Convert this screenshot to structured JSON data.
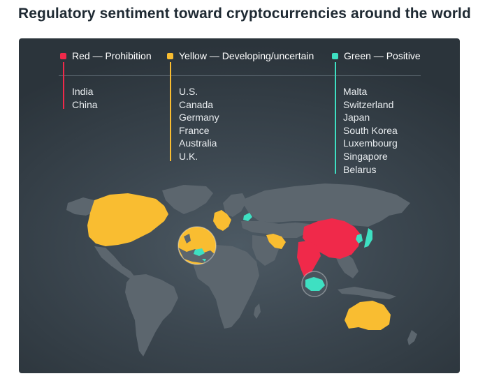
{
  "title": "Regulatory sentiment toward cryptocurrencies around the world",
  "legend": [
    {
      "key": "red",
      "label": "Red — Prohibition",
      "color": "#f0294a",
      "countries": [
        "India",
        "China"
      ]
    },
    {
      "key": "yellow",
      "label": "Yellow — Developing/uncertain",
      "color": "#f9bd31",
      "countries": [
        "U.S.",
        "Canada",
        "Germany",
        "France",
        "Australia",
        "U.K."
      ]
    },
    {
      "key": "green",
      "label": "Green — Positive",
      "color": "#3ee0c2",
      "countries": [
        "Malta",
        "Switzerland",
        "Japan",
        "South Korea",
        "Luxembourg",
        "Singapore",
        "Belarus"
      ]
    }
  ],
  "colors": {
    "land": "#5c666e",
    "panel": "#3a444c",
    "background": "#ffffff"
  }
}
